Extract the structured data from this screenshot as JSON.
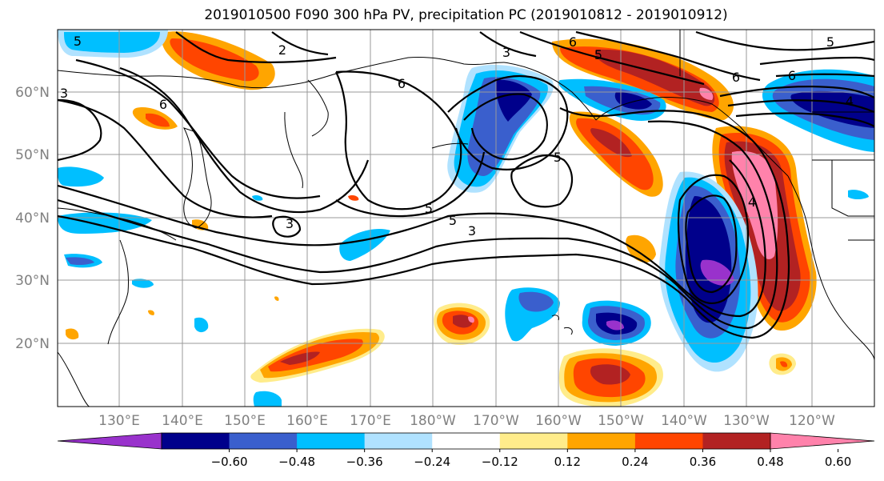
{
  "title": "2019010500 F090 300 hPa PV, precipitation PC (2019010812 - 2019010912)",
  "map": {
    "lat_labels": [
      "60°N",
      "50°N",
      "40°N",
      "30°N",
      "20°N"
    ],
    "lon_labels": [
      "130°E",
      "140°E",
      "150°E",
      "160°E",
      "170°E",
      "180°W",
      "170°W",
      "160°W",
      "150°W",
      "140°W",
      "130°W",
      "120°W"
    ],
    "pv_contour_labels": [
      "2",
      "3",
      "6",
      "5",
      "6",
      "5",
      "6",
      "5",
      "6",
      "4",
      "6",
      "5",
      "5",
      "4",
      "3",
      "3",
      "5",
      "3"
    ],
    "shading_field": "precipitation PC",
    "contour_field": "300 hPa PV"
  },
  "colorbar": {
    "ticks": [
      "−0.60",
      "−0.48",
      "−0.36",
      "−0.24",
      "−0.12",
      "0.12",
      "0.24",
      "0.36",
      "0.48",
      "0.60"
    ],
    "colors": [
      "#9932cc",
      "#00008b",
      "#3a5fcd",
      "#00bfff",
      "#b0e2ff",
      "#ffffff",
      "#ffec8b",
      "#ffa500",
      "#ff4500",
      "#b22222",
      "#ff82ab"
    ]
  }
}
